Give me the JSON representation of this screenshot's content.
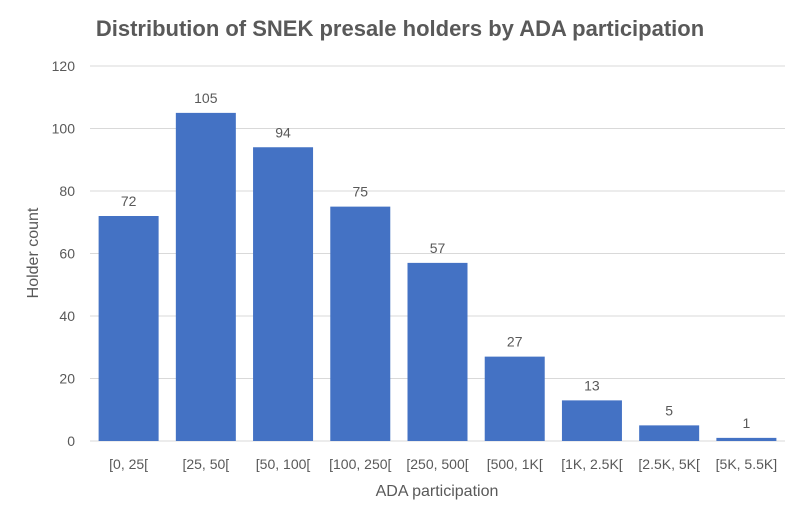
{
  "chart_data": {
    "type": "bar",
    "title": "Distribution of SNEK presale holders by ADA participation",
    "xlabel": "ADA participation",
    "ylabel": "Holder count",
    "categories": [
      "[0, 25[",
      "[25, 50[",
      "[50, 100[",
      "[100, 250[",
      "[250, 500[",
      "[500, 1K[",
      "[1K, 2.5K[",
      "[2.5K, 5K[",
      "[5K, 5.5K]"
    ],
    "values": [
      72,
      105,
      94,
      75,
      57,
      27,
      13,
      5,
      1
    ],
    "ylim": [
      0,
      120
    ],
    "yticks": [
      0,
      20,
      40,
      60,
      80,
      100,
      120
    ],
    "grid": true,
    "data_labels": true,
    "colors": {
      "bar": "#4472c4",
      "grid": "#d9d9d9",
      "text": "#595959",
      "title": "#595959"
    }
  }
}
